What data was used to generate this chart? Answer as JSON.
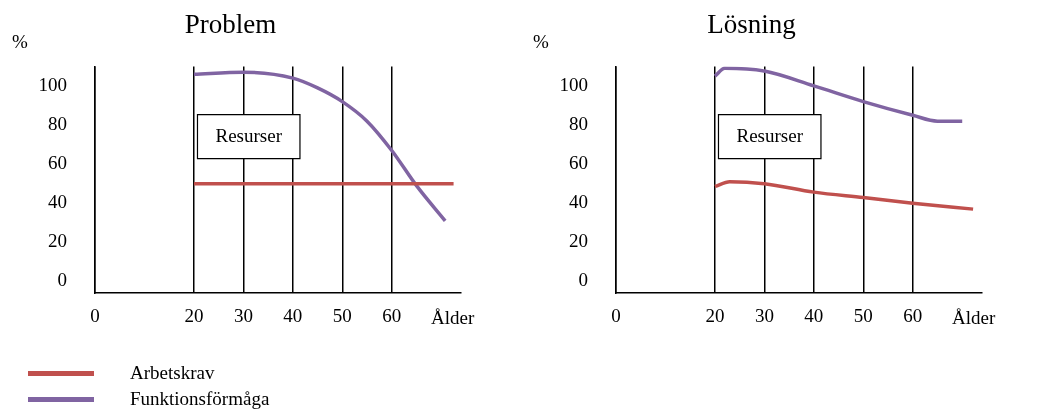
{
  "chart_data": [
    {
      "type": "line",
      "title": "Problem",
      "xlabel": "Ålder",
      "ylabel": "%",
      "xlim": [
        0,
        74
      ],
      "xticks": [
        0,
        20,
        30,
        40,
        50,
        60
      ],
      "ylim": [
        -6,
        110
      ],
      "yticks": [
        0,
        20,
        40,
        60,
        80,
        100
      ],
      "grid": "x",
      "legend": "bottom left",
      "marker": "none",
      "line_style": "solid",
      "annotations": [
        "Resurser"
      ],
      "series": [
        {
          "name": "Arbetskrav",
          "color": "#c0504d",
          "x": [
            20,
            72.5
          ],
          "values": [
            50,
            50
          ]
        },
        {
          "name": "Funktionsförmåga",
          "color": "#8064a2",
          "x": [
            20,
            30,
            40,
            45,
            50,
            55,
            60,
            65,
            70.8
          ],
          "values": [
            106,
            107,
            104,
            99,
            92,
            82,
            67,
            49,
            31
          ]
        }
      ]
    },
    {
      "type": "line",
      "title": "Lösning",
      "xlabel": "Ålder",
      "ylabel": "%",
      "xlim": [
        0,
        74
      ],
      "xticks": [
        0,
        20,
        30,
        40,
        50,
        60
      ],
      "ylim": [
        -6,
        110
      ],
      "yticks": [
        0,
        20,
        40,
        60,
        80,
        100
      ],
      "grid": "x",
      "marker": "none",
      "line_style": "solid",
      "annotations": [
        "Resurser"
      ],
      "series": [
        {
          "color": "#c0504d",
          "x": [
            20,
            23,
            30,
            40,
            50,
            60,
            72.2
          ],
          "values": [
            48.6,
            51,
            50,
            45.7,
            42.9,
            40,
            37
          ]
        },
        {
          "color": "#8064a2",
          "x": [
            20,
            22,
            30,
            40,
            50,
            60,
            65,
            70
          ],
          "values": [
            105,
            109,
            107.6,
            100,
            92,
            85,
            82,
            82
          ]
        }
      ]
    }
  ]
}
